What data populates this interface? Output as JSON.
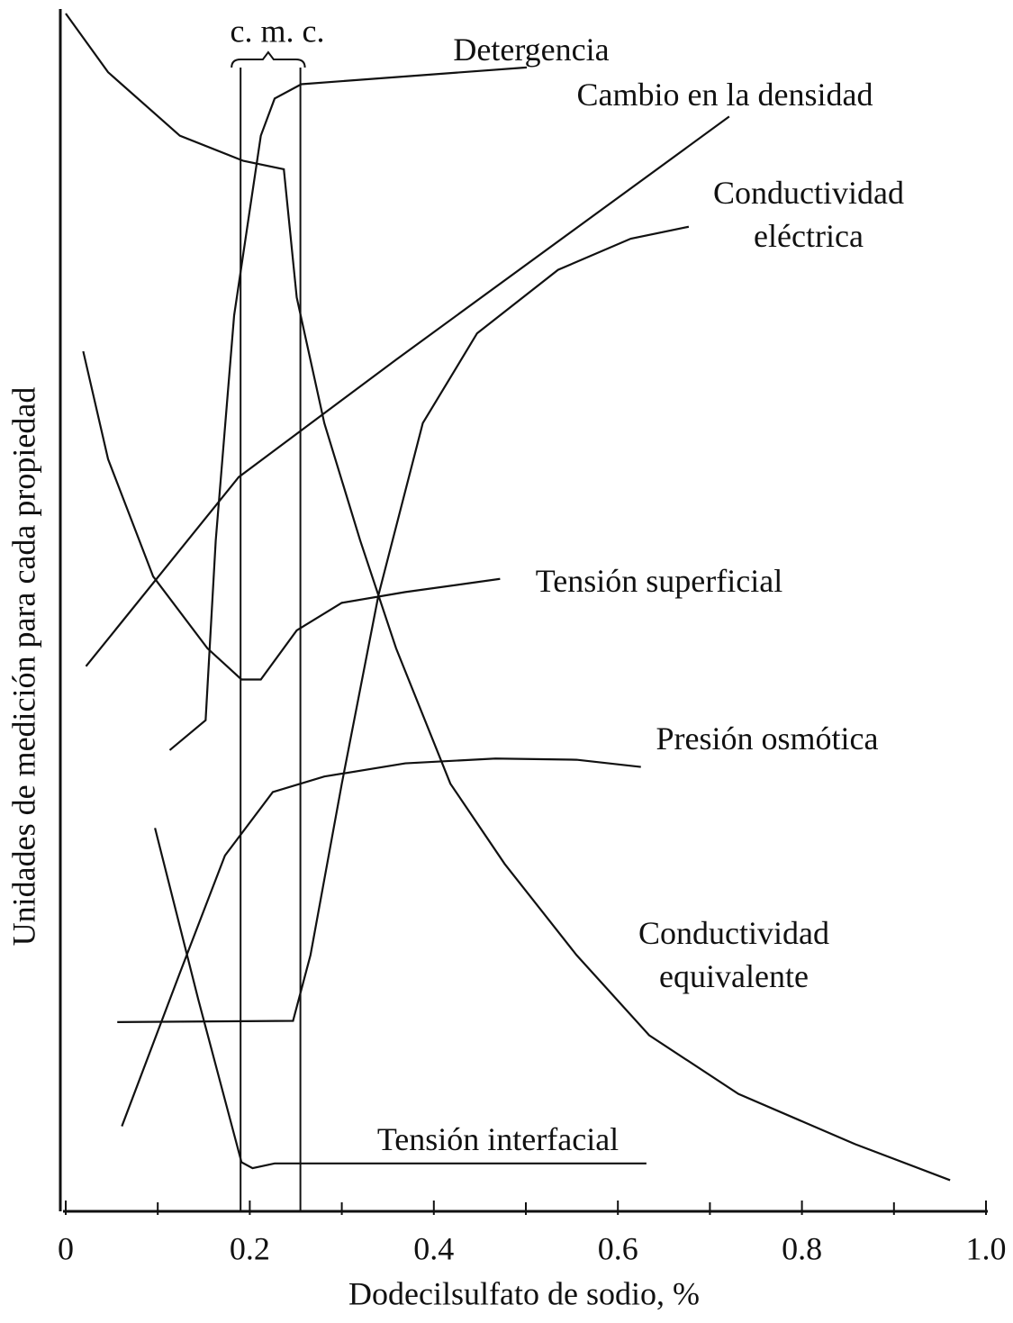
{
  "chart_data": {
    "type": "line",
    "x_label": "Dodecilsulfato de sodio, %",
    "y_label": "Unidades de medición para cada propiedad",
    "xlim": [
      0,
      1
    ],
    "ylim": [
      0,
      100
    ],
    "xticks": [
      0,
      0.2,
      0.4,
      0.6,
      0.8,
      {
        "value": 1,
        "label": "1.0"
      }
    ],
    "xminor_ticks": [
      0.1,
      0.3,
      0.5,
      0.7,
      0.9
    ],
    "cmc": [
      0.19,
      0.255
    ],
    "cmc_label": "c. m. c.",
    "color": "#111111",
    "series": [
      {
        "name": "Detergencia",
        "x": [
          0.113,
          0.152,
          0.163,
          0.183,
          0.212,
          0.227,
          0.256,
          0.501
        ],
        "values": [
          38.5,
          41.0,
          56.0,
          74.8,
          89.8,
          92.9,
          94.1,
          95.5
        ]
      },
      {
        "name": "Cambio en la densidad",
        "x": [
          0.022,
          0.188,
          0.359,
          0.721
        ],
        "values": [
          45.5,
          61.3,
          71.1,
          91.4
        ]
      },
      {
        "name": "Conductividad eléctrica",
        "x": [
          0.056,
          0.247,
          0.266,
          0.3,
          0.34,
          0.388,
          0.447,
          0.535,
          0.614,
          0.677
        ],
        "values": [
          15.8,
          15.9,
          21.4,
          35.7,
          51.5,
          65.8,
          73.3,
          78.6,
          81.2,
          82.2
        ]
      },
      {
        "name": "Tensión superficial",
        "x": [
          0.019,
          0.046,
          0.095,
          0.154,
          0.191,
          0.212,
          0.251,
          0.3,
          0.369,
          0.472
        ],
        "values": [
          71.8,
          62.8,
          53.0,
          47.0,
          44.4,
          44.4,
          48.5,
          50.8,
          51.7,
          52.8
        ]
      },
      {
        "name": "Presión osmótica",
        "x": [
          0.061,
          0.124,
          0.173,
          0.225,
          0.281,
          0.369,
          0.467,
          0.555,
          0.625
        ],
        "values": [
          7.1,
          19.9,
          29.7,
          35.0,
          36.3,
          37.4,
          37.8,
          37.7,
          37.1
        ]
      },
      {
        "name": "Conductividad equivalente",
        "x": [
          0,
          0.046,
          0.124,
          0.193,
          0.237,
          0.251,
          0.281,
          0.32,
          0.359,
          0.418,
          0.477,
          0.555,
          0.634,
          0.731,
          0.858,
          0.961
        ],
        "values": [
          100,
          95.1,
          89.8,
          87.7,
          87.0,
          76.3,
          65.8,
          56.0,
          47.0,
          35.7,
          29.0,
          21.4,
          14.7,
          9.8,
          5.6,
          2.6
        ]
      },
      {
        "name": "Tensión interfacial",
        "x": [
          0.097,
          0.144,
          0.191,
          0.203,
          0.227,
          0.631
        ],
        "values": [
          32.0,
          17.7,
          4.1,
          3.6,
          4.0,
          4.0
        ]
      }
    ]
  }
}
